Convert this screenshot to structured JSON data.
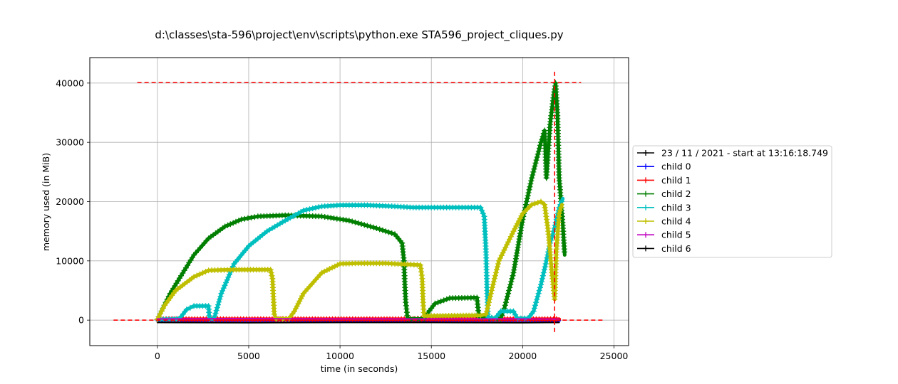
{
  "chart_data": {
    "type": "line",
    "title": "d:\\classes\\sta-596\\project\\env\\scripts\\python.exe STA596_project_cliques.py",
    "xlabel": "time (in seconds)",
    "ylabel": "memory used (in MiB)",
    "xlim": [
      -3700,
      25800
    ],
    "ylim": [
      -4300,
      44300
    ],
    "xticks": [
      0,
      5000,
      10000,
      15000,
      20000,
      25000
    ],
    "yticks": [
      0,
      10000,
      20000,
      30000,
      40000
    ],
    "grid": true,
    "legend_placement": "outside-right",
    "reference_lines": {
      "max_memory_hline": {
        "y": 40100,
        "x": [
          -1100,
          23200
        ],
        "color": "#ff0000"
      },
      "zero_hline": {
        "y": 0,
        "x": [
          -2400,
          24400
        ],
        "color": "#ff0000"
      },
      "peak_time_vline": {
        "x": 21750,
        "y": [
          -2000,
          42200
        ],
        "color": "#ff0000"
      }
    },
    "series": [
      {
        "name": "23 / 11 / 2021 - start at 13:16:18.749",
        "color": "#000000",
        "points": [
          [
            0,
            -400
          ],
          [
            5000,
            -450
          ],
          [
            10000,
            -400
          ],
          [
            15000,
            -400
          ],
          [
            20000,
            -450
          ],
          [
            22000,
            -400
          ]
        ]
      },
      {
        "name": "child 0",
        "color": "#0000ff",
        "points": [
          [
            0,
            0
          ],
          [
            22000,
            0
          ]
        ]
      },
      {
        "name": "child 1",
        "color": "#ff0000",
        "points": [
          [
            0,
            150
          ],
          [
            22000,
            150
          ]
        ]
      },
      {
        "name": "child 2",
        "color": "#007f00",
        "points": [
          [
            0,
            100
          ],
          [
            300,
            2000
          ],
          [
            700,
            4500
          ],
          [
            1300,
            7500
          ],
          [
            2000,
            11000
          ],
          [
            2800,
            13800
          ],
          [
            3700,
            15800
          ],
          [
            4600,
            17000
          ],
          [
            5500,
            17500
          ],
          [
            7000,
            17700
          ],
          [
            9000,
            17500
          ],
          [
            10500,
            16800
          ],
          [
            12000,
            15500
          ],
          [
            13000,
            14500
          ],
          [
            13400,
            13000
          ],
          [
            13500,
            10000
          ],
          [
            13550,
            6000
          ],
          [
            13600,
            3000
          ],
          [
            13700,
            200
          ],
          [
            14600,
            200
          ],
          [
            14700,
            800
          ],
          [
            15200,
            2800
          ],
          [
            16000,
            3700
          ],
          [
            17500,
            3800
          ],
          [
            17600,
            500
          ],
          [
            18000,
            400
          ],
          [
            18800,
            200
          ],
          [
            19000,
            2000
          ],
          [
            19500,
            8000
          ],
          [
            20000,
            17000
          ],
          [
            20500,
            24000
          ],
          [
            21000,
            30000
          ],
          [
            21200,
            32000
          ],
          [
            21300,
            24000
          ],
          [
            21500,
            33000
          ],
          [
            21700,
            38000
          ],
          [
            21800,
            40000
          ],
          [
            21900,
            35000
          ],
          [
            22000,
            24000
          ],
          [
            22100,
            20000
          ],
          [
            22200,
            16000
          ],
          [
            22300,
            11000
          ]
        ]
      },
      {
        "name": "child 3",
        "color": "#00bfbf",
        "points": [
          [
            0,
            100
          ],
          [
            1200,
            200
          ],
          [
            1600,
            1800
          ],
          [
            2000,
            2400
          ],
          [
            2800,
            2400
          ],
          [
            2850,
            200
          ],
          [
            3100,
            200
          ],
          [
            3500,
            4500
          ],
          [
            4200,
            9500
          ],
          [
            5000,
            12500
          ],
          [
            6000,
            15000
          ],
          [
            7000,
            16800
          ],
          [
            8000,
            18500
          ],
          [
            9000,
            19200
          ],
          [
            10000,
            19400
          ],
          [
            11500,
            19400
          ],
          [
            13000,
            19200
          ],
          [
            14000,
            19000
          ],
          [
            16000,
            19000
          ],
          [
            17700,
            19000
          ],
          [
            17900,
            17500
          ],
          [
            18000,
            11000
          ],
          [
            18050,
            5000
          ],
          [
            18100,
            500
          ],
          [
            18500,
            300
          ],
          [
            18800,
            1500
          ],
          [
            19500,
            1500
          ],
          [
            19700,
            300
          ],
          [
            20300,
            300
          ],
          [
            20600,
            1500
          ],
          [
            21000,
            6000
          ],
          [
            21300,
            10000
          ],
          [
            21500,
            13000
          ],
          [
            21700,
            15000
          ],
          [
            22000,
            19000
          ],
          [
            22200,
            20500
          ]
        ]
      },
      {
        "name": "child 4",
        "color": "#bfbf00",
        "points": [
          [
            0,
            100
          ],
          [
            400,
            2500
          ],
          [
            1000,
            5000
          ],
          [
            2000,
            7300
          ],
          [
            2800,
            8400
          ],
          [
            4000,
            8500
          ],
          [
            6200,
            8500
          ],
          [
            6300,
            7000
          ],
          [
            6350,
            4000
          ],
          [
            6400,
            1000
          ],
          [
            6500,
            200
          ],
          [
            7200,
            200
          ],
          [
            7500,
            1500
          ],
          [
            8000,
            4500
          ],
          [
            9000,
            8000
          ],
          [
            10000,
            9500
          ],
          [
            11000,
            9600
          ],
          [
            12500,
            9600
          ],
          [
            13000,
            9500
          ],
          [
            14400,
            9300
          ],
          [
            14500,
            7000
          ],
          [
            14550,
            3000
          ],
          [
            14600,
            700
          ],
          [
            15000,
            700
          ],
          [
            17700,
            800
          ],
          [
            18000,
            1000
          ],
          [
            18300,
            5000
          ],
          [
            18700,
            10000
          ],
          [
            19500,
            15000
          ],
          [
            20000,
            18000
          ],
          [
            20500,
            19500
          ],
          [
            21000,
            20000
          ],
          [
            21200,
            19500
          ],
          [
            21400,
            15000
          ],
          [
            21600,
            8000
          ],
          [
            21750,
            3500
          ],
          [
            21850,
            12000
          ],
          [
            22000,
            18000
          ],
          [
            22150,
            19500
          ]
        ]
      },
      {
        "name": "child 5",
        "color": "#bf00bf",
        "points": [
          [
            0,
            200
          ],
          [
            5000,
            250
          ],
          [
            10000,
            200
          ],
          [
            15000,
            200
          ],
          [
            20000,
            200
          ],
          [
            22000,
            150
          ]
        ]
      },
      {
        "name": "child 6",
        "color": "#000000",
        "points": [
          [
            0,
            0
          ],
          [
            22000,
            0
          ]
        ]
      }
    ]
  }
}
